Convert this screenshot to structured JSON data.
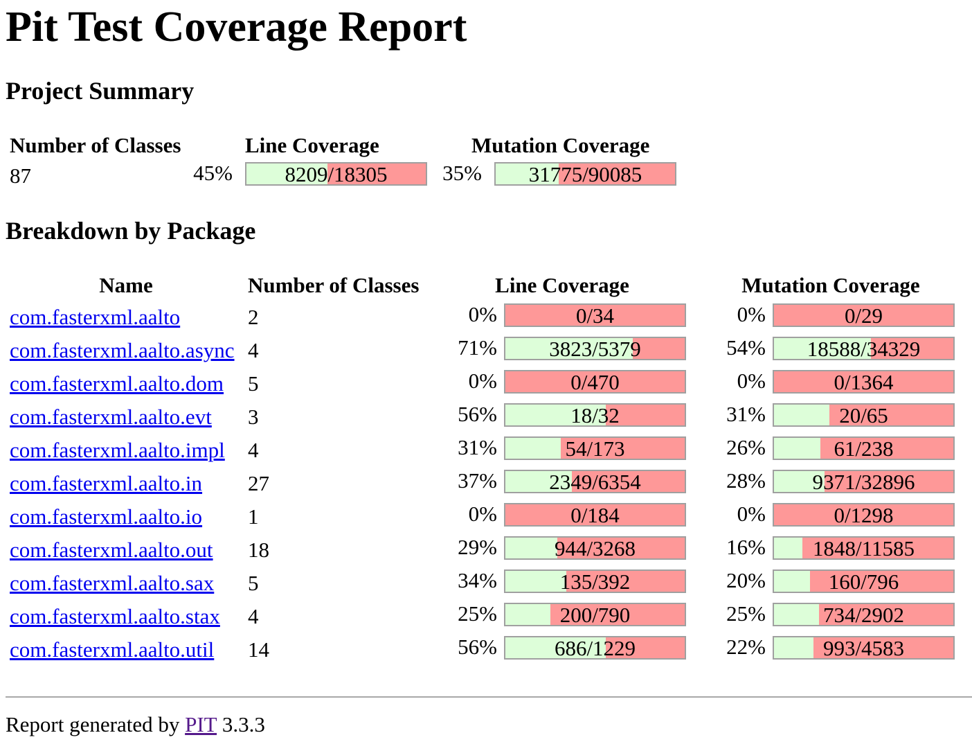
{
  "title": "Pit Test Coverage Report",
  "summary": {
    "heading": "Project Summary",
    "col_classes": "Number of Classes",
    "col_line": "Line Coverage",
    "col_mutation": "Mutation Coverage",
    "classes": "87",
    "line_pct": "45%",
    "line_fraction": 0.45,
    "line_ratio": "8209/18305",
    "mutation_pct": "35%",
    "mutation_fraction": 0.35,
    "mutation_ratio": "31775/90085"
  },
  "breakdown": {
    "heading": "Breakdown by Package",
    "col_name": "Name",
    "col_classes": "Number of Classes",
    "col_line": "Line Coverage",
    "col_mutation": "Mutation Coverage",
    "rows": [
      {
        "name": "com.fasterxml.aalto",
        "classes": "2",
        "line_pct": "0%",
        "line_fraction": 0.0,
        "line_ratio": "0/34",
        "mut_pct": "0%",
        "mut_fraction": 0.0,
        "mut_ratio": "0/29"
      },
      {
        "name": "com.fasterxml.aalto.async",
        "classes": "4",
        "line_pct": "71%",
        "line_fraction": 0.71,
        "line_ratio": "3823/5379",
        "mut_pct": "54%",
        "mut_fraction": 0.54,
        "mut_ratio": "18588/34329"
      },
      {
        "name": "com.fasterxml.aalto.dom",
        "classes": "5",
        "line_pct": "0%",
        "line_fraction": 0.0,
        "line_ratio": "0/470",
        "mut_pct": "0%",
        "mut_fraction": 0.0,
        "mut_ratio": "0/1364"
      },
      {
        "name": "com.fasterxml.aalto.evt",
        "classes": "3",
        "line_pct": "56%",
        "line_fraction": 0.56,
        "line_ratio": "18/32",
        "mut_pct": "31%",
        "mut_fraction": 0.31,
        "mut_ratio": "20/65"
      },
      {
        "name": "com.fasterxml.aalto.impl",
        "classes": "4",
        "line_pct": "31%",
        "line_fraction": 0.31,
        "line_ratio": "54/173",
        "mut_pct": "26%",
        "mut_fraction": 0.26,
        "mut_ratio": "61/238"
      },
      {
        "name": "com.fasterxml.aalto.in",
        "classes": "27",
        "line_pct": "37%",
        "line_fraction": 0.37,
        "line_ratio": "2349/6354",
        "mut_pct": "28%",
        "mut_fraction": 0.28,
        "mut_ratio": "9371/32896"
      },
      {
        "name": "com.fasterxml.aalto.io",
        "classes": "1",
        "line_pct": "0%",
        "line_fraction": 0.0,
        "line_ratio": "0/184",
        "mut_pct": "0%",
        "mut_fraction": 0.0,
        "mut_ratio": "0/1298"
      },
      {
        "name": "com.fasterxml.aalto.out",
        "classes": "18",
        "line_pct": "29%",
        "line_fraction": 0.29,
        "line_ratio": "944/3268",
        "mut_pct": "16%",
        "mut_fraction": 0.16,
        "mut_ratio": "1848/11585"
      },
      {
        "name": "com.fasterxml.aalto.sax",
        "classes": "5",
        "line_pct": "34%",
        "line_fraction": 0.34,
        "line_ratio": "135/392",
        "mut_pct": "20%",
        "mut_fraction": 0.2,
        "mut_ratio": "160/796"
      },
      {
        "name": "com.fasterxml.aalto.stax",
        "classes": "4",
        "line_pct": "25%",
        "line_fraction": 0.25,
        "line_ratio": "200/790",
        "mut_pct": "25%",
        "mut_fraction": 0.25,
        "mut_ratio": "734/2902"
      },
      {
        "name": "com.fasterxml.aalto.util",
        "classes": "14",
        "line_pct": "56%",
        "line_fraction": 0.56,
        "line_ratio": "686/1229",
        "mut_pct": "22%",
        "mut_fraction": 0.22,
        "mut_ratio": "993/4583"
      }
    ]
  },
  "footer": {
    "prefix": "Report generated by",
    "link": "PIT",
    "version": "3.3.3"
  },
  "colors": {
    "covered": "#ddfed9",
    "uncovered": "#fe9898",
    "bar_border": "#a0a0a0",
    "link": "#0000ee",
    "visited_link": "#551a8b"
  }
}
